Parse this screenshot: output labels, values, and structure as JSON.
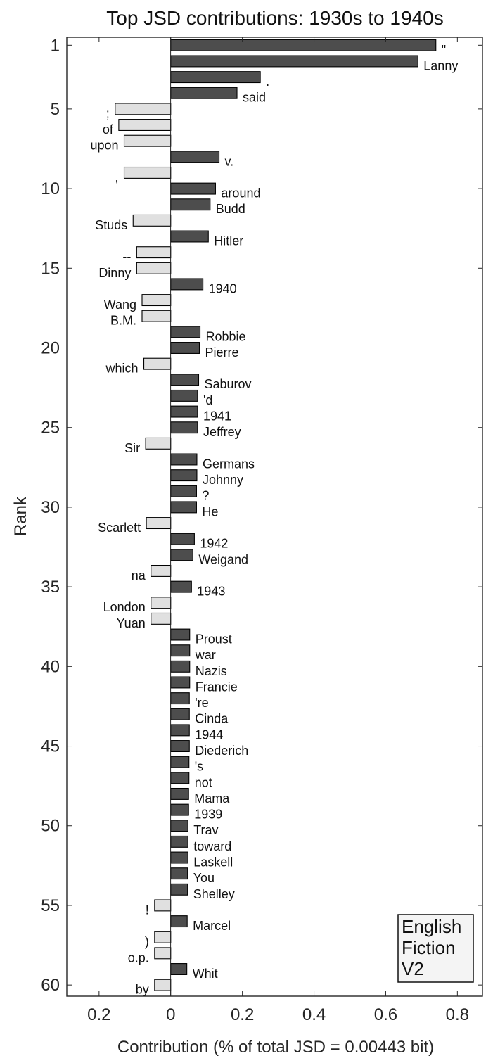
{
  "chart_data": {
    "type": "bar",
    "orientation": "horizontal",
    "title": "Top JSD contributions: 1930s to 1940s",
    "xlabel": "Contribution (% of total JSD = 0.00443 bit)",
    "ylabel": "Rank",
    "xlim": [
      -0.29,
      0.87
    ],
    "ylim": [
      0.5,
      60.7
    ],
    "xticks": [
      -0.2,
      0,
      0.2,
      0.4,
      0.6,
      0.8
    ],
    "xtick_labels": [
      "0.2",
      "0",
      "0.2",
      "0.4",
      "0.6",
      "0.8"
    ],
    "yticks": [
      1,
      5,
      10,
      15,
      20,
      25,
      30,
      35,
      40,
      45,
      50,
      55,
      60
    ],
    "ytick_labels": [
      "1",
      "5",
      "10",
      "15",
      "20",
      "25",
      "30",
      "35",
      "40",
      "45",
      "50",
      "55",
      "60"
    ],
    "legend_box": "English\nFiction\nV2",
    "legend_placement": "bottom-right",
    "colors": {
      "positive": "#4d4d4d",
      "negative": "#e0e0e0",
      "stroke": "#000000",
      "axis": "#262626"
    },
    "words": [
      "\"",
      "Lanny",
      ".",
      "said",
      ";",
      "of",
      "upon",
      "v.",
      ",",
      "around",
      "Budd",
      "Studs",
      "Hitler",
      "--",
      "Dinny",
      "1940",
      "Wang",
      "B.M.",
      "Robbie",
      "Pierre",
      "which",
      "Saburov",
      "'d",
      "1941",
      "Jeffrey",
      "Sir",
      "Germans",
      "Johnny",
      "?",
      "He",
      "Scarlett",
      "1942",
      "Weigand",
      "na",
      "1943",
      "London",
      "Yuan",
      "Proust",
      "war",
      "Nazis",
      "Francie",
      "'re",
      "Cinda",
      "1944",
      "Diederich",
      "'s",
      "not",
      "Mama",
      "1939",
      "Trav",
      "toward",
      "Laskell",
      "You",
      "Shelley",
      "!",
      "Marcel",
      ")",
      "o.p.",
      "Whit",
      "by"
    ],
    "values": [
      0.74,
      0.69,
      0.25,
      0.185,
      -0.155,
      -0.145,
      -0.13,
      0.135,
      -0.13,
      0.125,
      0.11,
      -0.105,
      0.105,
      -0.095,
      -0.095,
      0.09,
      -0.08,
      -0.08,
      0.082,
      0.08,
      -0.075,
      0.078,
      0.075,
      0.075,
      0.075,
      -0.07,
      0.073,
      0.073,
      0.072,
      0.072,
      -0.068,
      0.066,
      0.062,
      -0.055,
      0.058,
      -0.055,
      -0.055,
      0.053,
      0.053,
      0.053,
      0.053,
      0.052,
      0.052,
      0.052,
      0.052,
      0.051,
      0.051,
      0.05,
      0.05,
      0.048,
      0.048,
      0.048,
      0.047,
      0.047,
      -0.045,
      0.046,
      -0.045,
      -0.045,
      0.045,
      -0.045
    ]
  }
}
